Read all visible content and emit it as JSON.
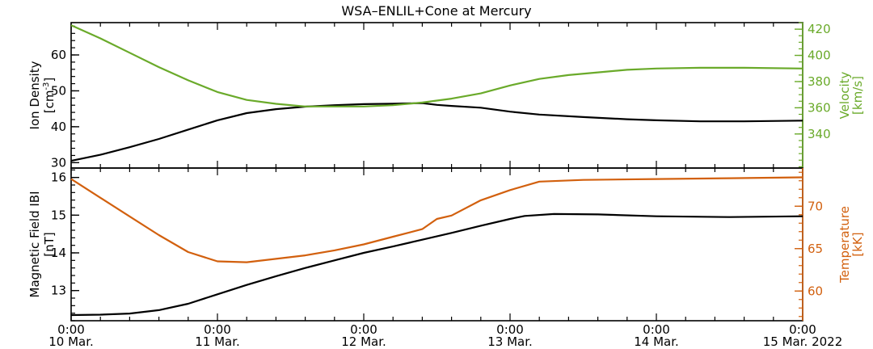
{
  "title": "WSA–ENLIL+Cone at Mercury",
  "colors": {
    "density": "#000000",
    "velocity": "#6aaa2a",
    "magnetic": "#000000",
    "temperature": "#d2600e",
    "axis": "#000000"
  },
  "x_axis": {
    "xlim": [
      0,
      5
    ],
    "ticks": [
      {
        "x": 0,
        "time": "0:00",
        "date": "10 Mar."
      },
      {
        "x": 1,
        "time": "0:00",
        "date": "11 Mar."
      },
      {
        "x": 2,
        "time": "0:00",
        "date": "12 Mar."
      },
      {
        "x": 3,
        "time": "0:00",
        "date": "13 Mar."
      },
      {
        "x": 4,
        "time": "0:00",
        "date": "14 Mar."
      },
      {
        "x": 5,
        "time": "0:00",
        "date": "15 Mar. 2022"
      }
    ],
    "minor_per_day": 5
  },
  "chart_data": [
    {
      "type": "line",
      "panel": "top",
      "title": "WSA–ENLIL+Cone at Mercury",
      "left_axis": {
        "label": "Ion Density",
        "units_prefix": "[cm",
        "units_sup": "-3",
        "units_suffix": "]",
        "ylim": [
          28.5,
          69
        ],
        "ticks": [
          30,
          40,
          50,
          60
        ],
        "minor_step": 2
      },
      "right_axis": {
        "label": "Velocity",
        "units": "[km/s]",
        "ylim": [
          314,
          425
        ],
        "ticks": [
          340,
          360,
          380,
          400,
          420
        ],
        "minor_step": 5
      },
      "series": [
        {
          "name": "Ion Density",
          "axis": "left",
          "x": [
            0,
            0.2,
            0.4,
            0.6,
            0.8,
            1.0,
            1.2,
            1.4,
            1.6,
            1.8,
            2.0,
            2.2,
            2.4,
            2.5,
            2.6,
            2.8,
            3.0,
            3.2,
            3.5,
            3.8,
            4.0,
            4.3,
            4.6,
            5.0
          ],
          "y": [
            30.5,
            32.2,
            34.3,
            36.6,
            39.2,
            41.8,
            43.8,
            44.9,
            45.6,
            46.0,
            46.3,
            46.4,
            46.6,
            46.1,
            45.8,
            45.3,
            44.2,
            43.4,
            42.7,
            42.1,
            41.8,
            41.5,
            41.5,
            41.7
          ]
        },
        {
          "name": "Velocity",
          "axis": "right",
          "x": [
            0,
            0.2,
            0.4,
            0.6,
            0.8,
            1.0,
            1.2,
            1.4,
            1.6,
            1.8,
            2.0,
            2.2,
            2.4,
            2.6,
            2.8,
            3.0,
            3.2,
            3.4,
            3.6,
            3.8,
            4.0,
            4.3,
            4.6,
            5.0
          ],
          "y": [
            423,
            413,
            402,
            391,
            381,
            372,
            366,
            363,
            361,
            361,
            361,
            362,
            364,
            367,
            371,
            377,
            382,
            385,
            387,
            389,
            390,
            390.5,
            390.5,
            390
          ]
        }
      ]
    },
    {
      "type": "line",
      "panel": "bottom",
      "left_axis": {
        "label": "Magnetic Field IBI",
        "units": "[nT]",
        "ylim": [
          12.2,
          16.25
        ],
        "ticks": [
          13,
          14,
          15,
          16
        ],
        "minor_step": 0.2
      },
      "right_axis": {
        "label": "Temperature",
        "units": "[kK]",
        "ylim": [
          56.5,
          74.5
        ],
        "ticks": [
          60,
          65,
          70
        ],
        "minor_step": 1
      },
      "series": [
        {
          "name": "Magnetic Field |B|",
          "axis": "left",
          "x": [
            0,
            0.2,
            0.4,
            0.6,
            0.8,
            1.0,
            1.2,
            1.4,
            1.6,
            1.8,
            2.0,
            2.2,
            2.4,
            2.6,
            2.8,
            3.0,
            3.1,
            3.3,
            3.6,
            4.0,
            4.5,
            5.0
          ],
          "y": [
            12.35,
            12.36,
            12.39,
            12.48,
            12.65,
            12.9,
            13.15,
            13.38,
            13.6,
            13.8,
            14.0,
            14.17,
            14.35,
            14.53,
            14.72,
            14.9,
            14.98,
            15.03,
            15.02,
            14.97,
            14.95,
            14.97
          ]
        },
        {
          "name": "Temperature",
          "axis": "right",
          "x": [
            0,
            0.2,
            0.4,
            0.6,
            0.8,
            1.0,
            1.2,
            1.4,
            1.6,
            1.8,
            2.0,
            2.2,
            2.4,
            2.5,
            2.6,
            2.8,
            3.0,
            3.2,
            3.5,
            4.0,
            4.5,
            5.0
          ],
          "y": [
            73.2,
            71.0,
            68.8,
            66.6,
            64.6,
            63.5,
            63.4,
            63.8,
            64.2,
            64.8,
            65.5,
            66.4,
            67.3,
            68.5,
            68.9,
            70.7,
            71.9,
            72.9,
            73.1,
            73.2,
            73.3,
            73.4
          ]
        }
      ]
    }
  ]
}
